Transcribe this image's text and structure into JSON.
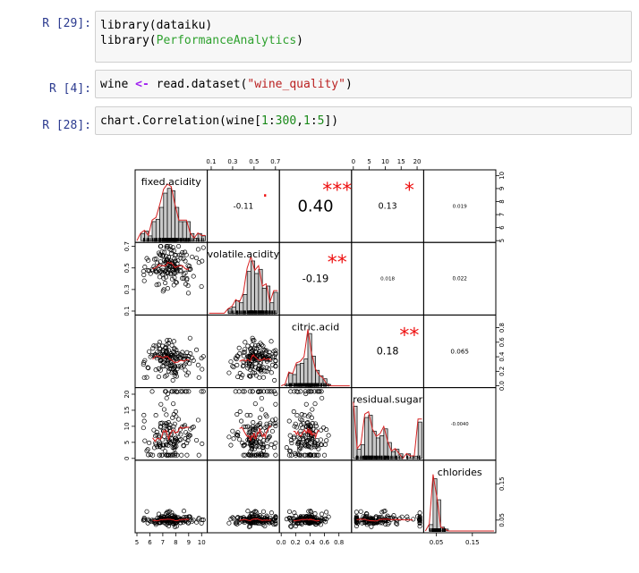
{
  "cells": [
    {
      "prompt": "R [29]:",
      "lines": [
        {
          "parts": [
            {
              "t": "library(dataiku)",
              "c": ""
            }
          ]
        },
        {
          "parts": [
            {
              "t": "library(",
              "c": ""
            },
            {
              "t": "PerformanceAnalytics",
              "c": "kw-green"
            },
            {
              "t": ")",
              "c": ""
            }
          ]
        }
      ]
    },
    {
      "prompt": "R [4]:",
      "lines": [
        {
          "parts": [
            {
              "t": "wine ",
              "c": ""
            },
            {
              "t": "<-",
              "c": "op-purple"
            },
            {
              "t": " read.dataset(",
              "c": ""
            },
            {
              "t": "\"wine_quality\"",
              "c": "str-red"
            },
            {
              "t": ")",
              "c": ""
            }
          ]
        }
      ]
    },
    {
      "prompt": "R [28]:",
      "lines": [
        {
          "parts": [
            {
              "t": "chart.Correlation(wine[",
              "c": ""
            },
            {
              "t": "1",
              "c": "num-green"
            },
            {
              "t": ":",
              "c": ""
            },
            {
              "t": "300",
              "c": "num-green"
            },
            {
              "t": ",",
              "c": ""
            },
            {
              "t": "1",
              "c": "num-green"
            },
            {
              "t": ":",
              "c": ""
            },
            {
              "t": "5",
              "c": "num-green"
            },
            {
              "t": "])",
              "c": ""
            }
          ]
        }
      ]
    }
  ],
  "chart_data": {
    "type": "scatter",
    "variables": [
      "fixed.acidity",
      "volatile.acidity",
      "citric.acid",
      "residual.sugar",
      "chlorides"
    ],
    "correlations": [
      {
        "row": 1,
        "col": 2,
        "value": "-0.11",
        "stars": "."
      },
      {
        "row": 1,
        "col": 3,
        "value": "0.40",
        "stars": "***"
      },
      {
        "row": 1,
        "col": 4,
        "value": "0.13",
        "stars": "*"
      },
      {
        "row": 1,
        "col": 5,
        "value": "0.019",
        "stars": ""
      },
      {
        "row": 2,
        "col": 3,
        "value": "-0.19",
        "stars": "**"
      },
      {
        "row": 2,
        "col": 4,
        "value": "0.018",
        "stars": ""
      },
      {
        "row": 2,
        "col": 5,
        "value": "0.022",
        "stars": ""
      },
      {
        "row": 3,
        "col": 4,
        "value": "0.18",
        "stars": "**"
      },
      {
        "row": 3,
        "col": 5,
        "value": "0.065",
        "stars": ""
      },
      {
        "row": 4,
        "col": 5,
        "value": "-0.0040",
        "stars": ""
      }
    ],
    "axes": {
      "top": [
        {
          "col": 2,
          "ticks": [
            "0.1",
            "0.3",
            "0.5",
            "0.7"
          ]
        },
        {
          "col": 4,
          "ticks": [
            "0",
            "5",
            "10",
            "15",
            "20"
          ]
        }
      ],
      "bottom": [
        {
          "col": 1,
          "ticks": [
            "5",
            "6",
            "7",
            "8",
            "9",
            "10"
          ]
        },
        {
          "col": 3,
          "ticks": [
            "0.0",
            "0.2",
            "0.4",
            "0.6",
            "0.8"
          ]
        },
        {
          "col": 5,
          "ticks": [
            "0.05",
            "0.15"
          ]
        }
      ],
      "left": [
        {
          "row": 2,
          "ticks": [
            "0.1",
            "0.3",
            "0.5",
            "0.7"
          ]
        },
        {
          "row": 4,
          "ticks": [
            "0",
            "5",
            "10",
            "15",
            "20"
          ]
        }
      ],
      "right": [
        {
          "row": 1,
          "ticks": [
            "5",
            "6",
            "7",
            "8",
            "9",
            "10"
          ]
        },
        {
          "row": 3,
          "ticks": [
            "0.0",
            "0.2",
            "0.4",
            "0.6",
            "0.8"
          ]
        },
        {
          "row": 5,
          "ticks": [
            "0.05",
            "0.15"
          ]
        }
      ]
    },
    "ranges": {
      "fixed.acidity": [
        5,
        10.3
      ],
      "volatile.acidity": [
        0.08,
        0.72
      ],
      "citric.acid": [
        0,
        0.95
      ],
      "residual.sugar": [
        0,
        21.5
      ],
      "chlorides": [
        0.02,
        0.21
      ]
    },
    "colors": {
      "fit_line": "#d62020",
      "stars": "#ee1111",
      "hist_fill": "#c8c8c8"
    }
  }
}
